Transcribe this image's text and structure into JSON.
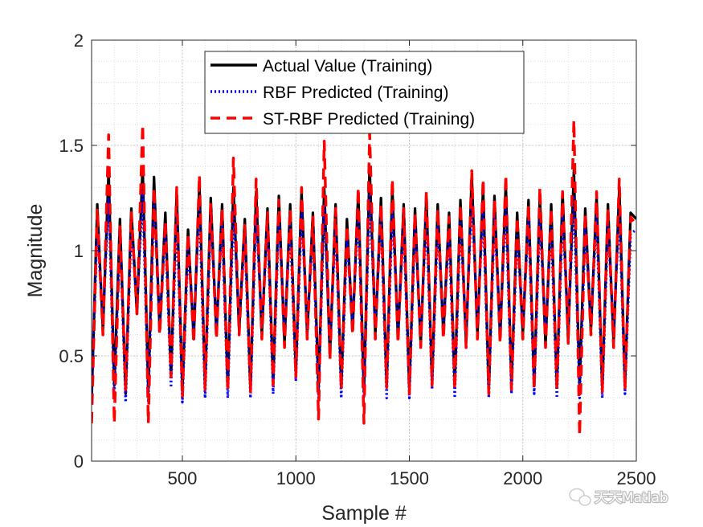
{
  "chart_data": {
    "type": "line",
    "title": "",
    "xlabel": "Sample #",
    "ylabel": "Magnitude",
    "xlim": [
      100,
      2500
    ],
    "ylim": [
      0,
      2
    ],
    "xticks": [
      500,
      1000,
      1500,
      2000,
      2500
    ],
    "yticks": [
      0,
      0.5,
      1,
      1.5,
      2
    ],
    "xtick_labels": [
      "500",
      "1000",
      "1500",
      "2000",
      "2500"
    ],
    "ytick_labels": [
      "0",
      "0.5",
      "1",
      "1.5",
      "2"
    ],
    "grid": true,
    "minor_grid": true,
    "legend_location": "top-center",
    "x": [
      100,
      125,
      150,
      175,
      200,
      225,
      250,
      275,
      300,
      325,
      350,
      375,
      400,
      425,
      450,
      475,
      500,
      525,
      550,
      575,
      600,
      625,
      650,
      675,
      700,
      725,
      750,
      775,
      800,
      825,
      850,
      875,
      900,
      925,
      950,
      975,
      1000,
      1025,
      1050,
      1075,
      1100,
      1125,
      1150,
      1175,
      1200,
      1225,
      1250,
      1275,
      1300,
      1325,
      1350,
      1375,
      1400,
      1425,
      1450,
      1475,
      1500,
      1525,
      1550,
      1575,
      1600,
      1625,
      1650,
      1675,
      1700,
      1725,
      1750,
      1775,
      1800,
      1825,
      1850,
      1875,
      1900,
      1925,
      1950,
      1975,
      2000,
      2025,
      2050,
      2075,
      2100,
      2125,
      2150,
      2175,
      2200,
      2225,
      2250,
      2275,
      2300,
      2325,
      2350,
      2375,
      2400,
      2425,
      2450,
      2475,
      2500
    ],
    "series": [
      {
        "name": "Actual Value (Training)",
        "color": "#000000",
        "style": "solid",
        "values": [
          0.28,
          1.22,
          0.62,
          1.38,
          0.36,
          1.15,
          0.32,
          1.2,
          0.7,
          1.4,
          0.33,
          1.35,
          0.62,
          1.18,
          0.4,
          1.28,
          0.33,
          1.1,
          0.58,
          1.32,
          0.36,
          1.25,
          0.6,
          1.22,
          0.35,
          1.3,
          0.62,
          1.15,
          0.34,
          1.28,
          0.6,
          1.2,
          0.37,
          1.26,
          0.56,
          1.22,
          0.42,
          1.28,
          0.6,
          1.18,
          0.34,
          1.3,
          0.5,
          1.22,
          0.35,
          1.15,
          0.62,
          1.28,
          0.33,
          1.4,
          0.6,
          1.25,
          0.36,
          1.3,
          0.58,
          1.22,
          0.34,
          1.2,
          0.55,
          1.26,
          0.38,
          1.22,
          0.6,
          1.18,
          0.36,
          1.24,
          0.56,
          1.36,
          0.6,
          1.3,
          0.33,
          1.26,
          0.58,
          1.32,
          0.36,
          1.18,
          0.6,
          1.24,
          0.36,
          1.26,
          0.55,
          1.22,
          0.35,
          1.28,
          0.58,
          1.38,
          0.35,
          1.2,
          0.62,
          1.26,
          0.34,
          1.22,
          0.56,
          1.3,
          0.36,
          1.18,
          1.15
        ]
      },
      {
        "name": "RBF Predicted (Training)",
        "color": "#0000ff",
        "style": "dotted",
        "values": [
          0.3,
          1.1,
          0.66,
          1.25,
          0.3,
          1.08,
          0.28,
          1.12,
          0.72,
          1.28,
          0.28,
          1.25,
          0.66,
          1.1,
          0.35,
          1.18,
          0.28,
          1.02,
          0.62,
          1.22,
          0.3,
          1.16,
          0.64,
          1.12,
          0.3,
          1.2,
          0.66,
          1.06,
          0.3,
          1.18,
          0.64,
          1.12,
          0.32,
          1.16,
          0.6,
          1.12,
          0.38,
          1.18,
          0.64,
          1.1,
          0.3,
          1.22,
          0.54,
          1.12,
          0.3,
          1.06,
          0.66,
          1.18,
          0.3,
          1.28,
          0.64,
          1.16,
          0.3,
          1.2,
          0.62,
          1.12,
          0.3,
          1.12,
          0.6,
          1.16,
          0.34,
          1.12,
          0.64,
          1.08,
          0.3,
          1.14,
          0.6,
          1.25,
          0.64,
          1.2,
          0.3,
          1.16,
          0.62,
          1.22,
          0.32,
          1.08,
          0.64,
          1.14,
          0.32,
          1.16,
          0.6,
          1.12,
          0.3,
          1.18,
          0.62,
          1.26,
          0.3,
          1.1,
          0.66,
          1.16,
          0.3,
          1.12,
          0.6,
          1.2,
          0.32,
          1.08,
          1.1
        ]
      },
      {
        "name": "ST-RBF Predicted (Training)",
        "color": "#ff0000",
        "style": "dashed",
        "values": [
          0.18,
          1.2,
          0.6,
          1.55,
          0.18,
          1.12,
          0.34,
          1.18,
          0.7,
          1.6,
          0.18,
          1.3,
          0.6,
          1.14,
          0.4,
          1.3,
          0.3,
          1.08,
          0.56,
          1.36,
          0.34,
          1.22,
          0.58,
          1.2,
          0.33,
          1.44,
          0.6,
          1.12,
          0.33,
          1.34,
          0.58,
          1.18,
          0.36,
          1.24,
          0.54,
          1.2,
          0.4,
          1.3,
          0.58,
          1.16,
          0.2,
          1.52,
          0.48,
          1.2,
          0.34,
          1.12,
          0.6,
          1.3,
          0.18,
          1.56,
          0.58,
          1.22,
          0.35,
          1.34,
          0.56,
          1.2,
          0.32,
          1.18,
          0.54,
          1.28,
          0.36,
          1.2,
          0.58,
          1.16,
          0.34,
          1.22,
          0.54,
          1.38,
          0.58,
          1.34,
          0.32,
          1.24,
          0.56,
          1.36,
          0.34,
          1.16,
          0.58,
          1.22,
          0.34,
          1.3,
          0.54,
          1.2,
          0.34,
          1.28,
          0.56,
          1.62,
          0.12,
          1.18,
          0.6,
          1.28,
          0.33,
          1.2,
          0.54,
          1.34,
          0.34,
          1.16,
          1.12
        ]
      }
    ]
  },
  "watermark": {
    "text": "天天Matlab",
    "icon": "wechat-icon"
  }
}
